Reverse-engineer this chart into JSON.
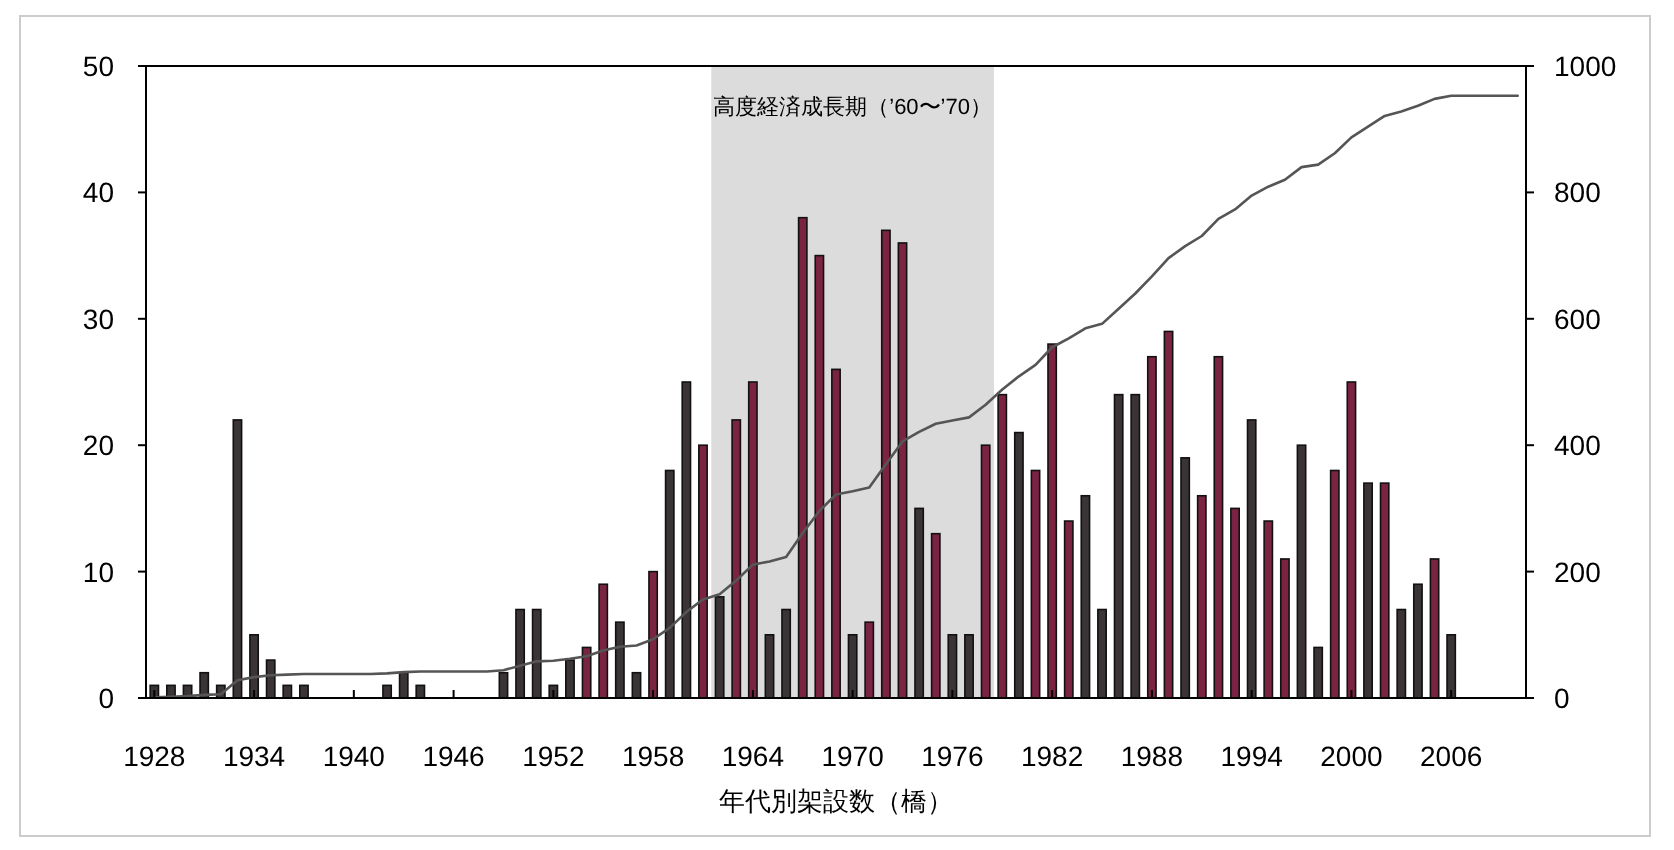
{
  "chart_data": {
    "type": "bar",
    "xlabel": "年代別架設数（橋）",
    "xlim": [
      1927.5,
      2010.5
    ],
    "xticks": [
      1928,
      1934,
      1940,
      1946,
      1952,
      1958,
      1964,
      1970,
      1976,
      1982,
      1988,
      1994,
      2000,
      2006
    ],
    "ylim": [
      0,
      50
    ],
    "yticks": [
      0,
      10,
      20,
      30,
      40,
      50
    ],
    "y2lim": [
      0,
      1000
    ],
    "y2ticks": [
      0,
      200,
      400,
      600,
      800,
      1000
    ],
    "grid": false,
    "bands": [
      {
        "axis": "x",
        "from": 1961.5,
        "to": 1978.5,
        "label": "高度経済成長期（’60〜’70）",
        "color": "#dcdcdc"
      }
    ],
    "series": [
      {
        "x": [
          1928,
          1929,
          1930,
          1931,
          1932,
          1933,
          1934,
          1935,
          1936,
          1937,
          1938,
          1939,
          1940,
          1941,
          1942,
          1943,
          1944,
          1945,
          1946,
          1947,
          1948,
          1949,
          1950,
          1951,
          1952,
          1953,
          1954,
          1955,
          1956,
          1957,
          1958,
          1959,
          1960,
          1961,
          1962,
          1963,
          1964,
          1965,
          1966,
          1967,
          1968,
          1969,
          1970,
          1971,
          1972,
          1973,
          1974,
          1975,
          1976,
          1977,
          1978,
          1979,
          1980,
          1981,
          1982,
          1983,
          1984,
          1985,
          1986,
          1987,
          1988,
          1989,
          1990,
          1991,
          1992,
          1993,
          1994,
          1995,
          1996,
          1997,
          1998,
          1999,
          2000,
          2001,
          2002,
          2003,
          2004,
          2005,
          2006
        ],
        "values": [
          1,
          1,
          1,
          2,
          1,
          22,
          5,
          3,
          1,
          1,
          0,
          0,
          0,
          0,
          1,
          2,
          1,
          0,
          0,
          0,
          0,
          2,
          7,
          7,
          1,
          3,
          4,
          9,
          6,
          2,
          10,
          18,
          25,
          20,
          8,
          22,
          25,
          5,
          7,
          38,
          35,
          26,
          5,
          6,
          37,
          36,
          15,
          13,
          5,
          5,
          20,
          24,
          21,
          18,
          28,
          14,
          16,
          7,
          24,
          24,
          27,
          29,
          19,
          16,
          27,
          15,
          22,
          14,
          11,
          20,
          4,
          18,
          25,
          17,
          17,
          7,
          9,
          11,
          5
        ],
        "colors": [
          "#3b3436",
          "#3b3436",
          "#3b3436",
          "#3b3436",
          "#3b3436",
          "#3b3436",
          "#3b3436",
          "#3b3436",
          "#3b3436",
          "#3b3436",
          "#3b3436",
          "#3b3436",
          "#3b3436",
          "#3b3436",
          "#3b3436",
          "#3b3436",
          "#3b3436",
          "#3b3436",
          "#3b3436",
          "#3b3436",
          "#3b3436",
          "#3b3436",
          "#3b3436",
          "#3b3436",
          "#3b3436",
          "#3b3436",
          "#7a2342",
          "#7a2342",
          "#3b3436",
          "#3b3436",
          "#7a2342",
          "#3b3436",
          "#3b3436",
          "#7a2342",
          "#3b3436",
          "#7a2342",
          "#7a2342",
          "#3b3436",
          "#3b3436",
          "#7a2342",
          "#7a2342",
          "#7a2342",
          "#3b3436",
          "#7a2342",
          "#7a2342",
          "#7a2342",
          "#3b3436",
          "#7a2342",
          "#3b3436",
          "#3b3436",
          "#7a2342",
          "#7a2342",
          "#3b3436",
          "#7a2342",
          "#7a2342",
          "#7a2342",
          "#3b3436",
          "#3b3436",
          "#3b3436",
          "#3b3436",
          "#7a2342",
          "#7a2342",
          "#3b3436",
          "#7a2342",
          "#7a2342",
          "#7a2342",
          "#3b3436",
          "#7a2342",
          "#7a2342",
          "#3b3436",
          "#3b3436",
          "#7a2342",
          "#7a2342",
          "#3b3436",
          "#7a2342",
          "#3b3436",
          "#3b3436",
          "#7a2342",
          "#3b3436"
        ]
      },
      {
        "type": "line",
        "axis": "y2",
        "color": "#555555",
        "x": [
          1928,
          1929,
          1930,
          1931,
          1932,
          1933,
          1934,
          1935,
          1936,
          1937,
          1938,
          1939,
          1940,
          1941,
          1942,
          1943,
          1944,
          1945,
          1946,
          1947,
          1948,
          1949,
          1950,
          1951,
          1952,
          1953,
          1954,
          1955,
          1956,
          1957,
          1958,
          1959,
          1960,
          1961,
          1962,
          1963,
          1964,
          1965,
          1966,
          1967,
          1968,
          1969,
          1970,
          1971,
          1972,
          1973,
          1974,
          1975,
          1976,
          1977,
          1978,
          1979,
          1980,
          1981,
          1982,
          1983,
          1984,
          1985,
          1986,
          1987,
          1988,
          1989,
          1990,
          1991,
          1992,
          1993,
          1994,
          1995,
          1996,
          1997,
          1998,
          1999,
          2000,
          2001,
          2002,
          2003,
          2004,
          2005,
          2006,
          2007,
          2008,
          2009,
          2010
        ],
        "values": [
          1,
          2,
          3,
          5,
          6,
          28,
          33,
          36,
          37,
          38,
          38,
          38,
          38,
          38,
          39,
          41,
          42,
          42,
          42,
          42,
          42,
          44,
          51,
          58,
          59,
          62,
          66,
          75,
          81,
          83,
          93,
          111,
          136,
          156,
          164,
          186,
          211,
          216,
          223,
          261,
          296,
          322,
          327,
          333,
          370,
          406,
          421,
          434,
          439,
          444,
          464,
          488,
          509,
          527,
          555,
          569,
          585,
          592,
          616,
          640,
          667,
          696,
          715,
          731,
          758,
          773,
          795,
          809,
          820,
          840,
          844,
          862,
          887,
          904,
          921,
          928,
          937,
          948,
          953,
          953,
          953,
          953,
          953
        ]
      }
    ]
  }
}
